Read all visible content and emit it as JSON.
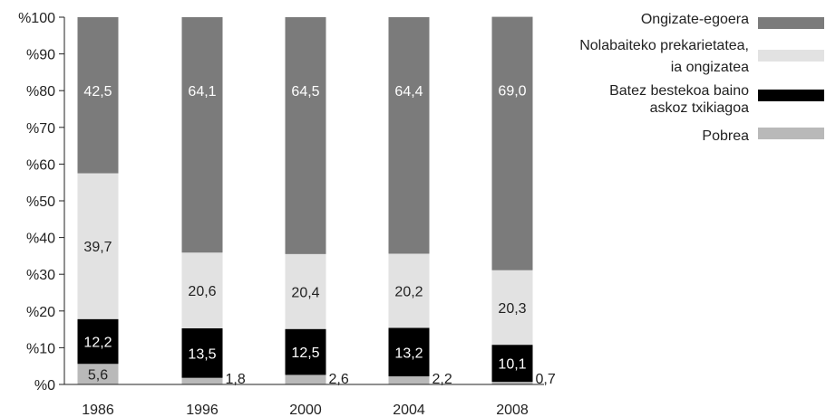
{
  "chart_data": {
    "type": "bar",
    "stacked": true,
    "categories": [
      "1986",
      "1996",
      "2000",
      "2004",
      "2008"
    ],
    "series": [
      {
        "name": "Pobrea",
        "values": [
          5.6,
          1.8,
          2.6,
          2.2,
          0.7
        ],
        "labels": [
          "5,6",
          "1,8",
          "2,6",
          "2,2",
          "0,7"
        ],
        "color": "#b9b9b9"
      },
      {
        "name": "Batez bestekoa baino askoz txikiagoa",
        "values": [
          12.2,
          13.5,
          12.5,
          13.2,
          10.1
        ],
        "labels": [
          "12,2",
          "13,5",
          "12,5",
          "13,2",
          "10,1"
        ],
        "color": "#000000"
      },
      {
        "name": "Nolabaiteko prekarietatea, ia ongizatea",
        "values": [
          39.7,
          20.6,
          20.4,
          20.2,
          20.3
        ],
        "labels": [
          "39,7",
          "20,6",
          "20,4",
          "20,2",
          "20,3"
        ],
        "color": "#e2e2e2"
      },
      {
        "name": "Ongizate-egoera",
        "values": [
          42.5,
          64.1,
          64.5,
          64.4,
          69.0
        ],
        "labels": [
          "42,5",
          "64,1",
          "64,5",
          "64,4",
          "69,0"
        ],
        "color": "#7b7b7b"
      }
    ],
    "y_ticks": [
      "%0",
      "%10",
      "%20",
      "%30",
      "%40",
      "%50",
      "%60",
      "%70",
      "%80",
      "%90",
      "%100"
    ],
    "ylim": [
      0,
      100
    ],
    "legend": [
      {
        "lines": [
          "Ongizate-egoera"
        ],
        "color": "#7b7b7b"
      },
      {
        "lines": [
          "Nolabaiteko prekarietatea,",
          "ia ongizatea"
        ],
        "color": "#e2e2e2"
      },
      {
        "lines": [
          "Batez bestekoa baino",
          "askoz txikiagoa"
        ],
        "color": "#000000"
      },
      {
        "lines": [
          "Pobrea"
        ],
        "color": "#b9b9b9"
      }
    ],
    "legend_position": "top-right",
    "grid": false
  }
}
